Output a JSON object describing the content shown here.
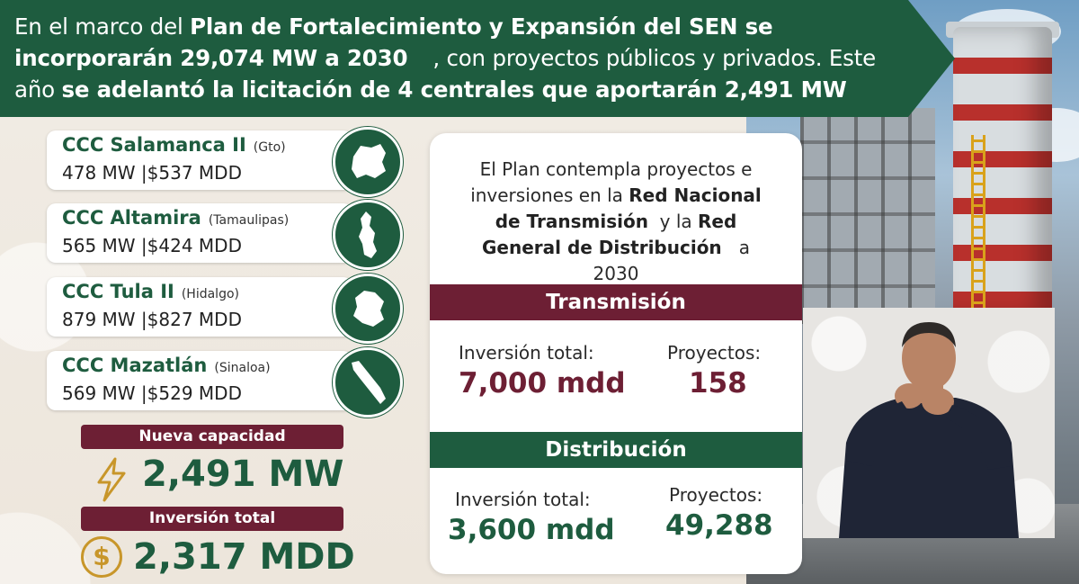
{
  "header": {
    "line1_a": "En el marco del ",
    "line1_b": "Plan de Fortalecimiento y Expansión del SEN se",
    "line2_a": "incorporarán 29,074 MW a 2030",
    "line2_b": ", con proyectos públicos y privados. Este",
    "line3_a": "año ",
    "line3_b": "se adelantó la licitación de 4 centrales que aportarán 2,491 MW"
  },
  "plants": [
    {
      "name": "CCC Salamanca II",
      "state": "(Gto)",
      "detail": "478 MW  |$537 MDD",
      "map_icon": "guanajuato-map-icon"
    },
    {
      "name": "CCC Altamira",
      "state": "(Tamaulipas)",
      "detail": "565 MW  |$424 MDD",
      "map_icon": "tamaulipas-map-icon"
    },
    {
      "name": "CCC Tula II",
      "state": "(Hidalgo)",
      "detail": "879 MW  |$827 MDD",
      "map_icon": "hidalgo-map-icon"
    },
    {
      "name": "CCC Mazatlán",
      "state": "(Sinaloa)",
      "detail": "569 MW  |$529 MDD",
      "map_icon": "sinaloa-map-icon"
    }
  ],
  "summary": {
    "capacity_label": "Nueva capacidad",
    "capacity_value": "2,491 MW",
    "investment_label": "Inversión total",
    "investment_value": "2,317 MDD",
    "bolt_icon": "lightning-bolt-icon",
    "coin_icon": "dollar-coin-icon",
    "coin_symbol": "$"
  },
  "panel": {
    "intro_1": "El Plan contempla proyectos e",
    "intro_2a": "inversiones en la ",
    "intro_2b": "Red Nacional",
    "intro_3a": "de Transmisión",
    "intro_3b": "  y la ",
    "intro_3c": "Red",
    "intro_4a": "General de Distribución",
    "intro_4b": "   a",
    "intro_5": "2030",
    "transmission": {
      "title": "Transmisión",
      "investment_label": "Inversión total:",
      "investment_value": "7,000 mdd",
      "projects_label": "Proyectos:",
      "projects_value": "158"
    },
    "distribution": {
      "title": "Distribución",
      "investment_label": "Inversión total:",
      "investment_value": "3,600 mdd",
      "projects_label": "Proyectos:",
      "projects_value": "49,288"
    }
  },
  "colors": {
    "green": "#1e5c3f",
    "maroon": "#6d1f34",
    "gold": "#c8962a"
  }
}
